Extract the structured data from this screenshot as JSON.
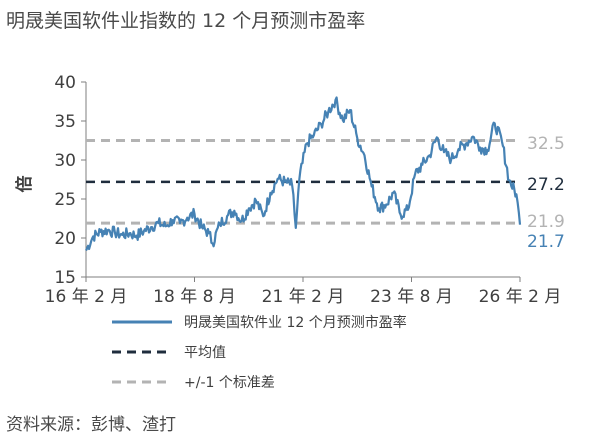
{
  "title": "明晟美国软件业指数的 12 个月预测市盈率",
  "source": "资料来源：彭博、渣打",
  "chart_data": {
    "type": "line",
    "ylabel": "倍",
    "ylim": [
      15,
      40
    ],
    "yticks": [
      15,
      20,
      25,
      30,
      35,
      40
    ],
    "xlim": [
      "2016-02",
      "2026-02"
    ],
    "xticks": [
      {
        "date": "2016-02",
        "label": "16 年 2 月"
      },
      {
        "date": "2018-08",
        "label": "18 年 8 月"
      },
      {
        "date": "2021-02",
        "label": "21 年 2 月"
      },
      {
        "date": "2023-08",
        "label": "23 年 8 月"
      },
      {
        "date": "2026-02",
        "label": "26 年 2 月"
      }
    ],
    "series": [
      {
        "name": "明晟美国软件业 12 个月预测市盈率",
        "color": "#4682b4",
        "points": [
          [
            "2016-02",
            18.4
          ],
          [
            "2016-04",
            20.2
          ],
          [
            "2016-06",
            20.8
          ],
          [
            "2016-08",
            21.0
          ],
          [
            "2016-10",
            20.7
          ],
          [
            "2016-12",
            20.4
          ],
          [
            "2017-02",
            20.6
          ],
          [
            "2017-04",
            20.3
          ],
          [
            "2017-06",
            20.9
          ],
          [
            "2017-08",
            21.4
          ],
          [
            "2017-10",
            21.9
          ],
          [
            "2017-12",
            21.5
          ],
          [
            "2018-02",
            22.3
          ],
          [
            "2018-04",
            21.9
          ],
          [
            "2018-06",
            22.6
          ],
          [
            "2018-08",
            23.1
          ],
          [
            "2018-10",
            21.4
          ],
          [
            "2018-12",
            20.6
          ],
          [
            "2019-01",
            19.3
          ],
          [
            "2019-03",
            21.8
          ],
          [
            "2019-05",
            22.8
          ],
          [
            "2019-07",
            23.5
          ],
          [
            "2019-09",
            22.2
          ],
          [
            "2019-11",
            23.8
          ],
          [
            "2020-01",
            24.8
          ],
          [
            "2020-03",
            22.8
          ],
          [
            "2020-05",
            25.8
          ],
          [
            "2020-07",
            27.6
          ],
          [
            "2020-09",
            27.2
          ],
          [
            "2020-11",
            26.8
          ],
          [
            "2020-12",
            21.3
          ],
          [
            "2021-01",
            27.6
          ],
          [
            "2021-03",
            32.1
          ],
          [
            "2021-05",
            33.2
          ],
          [
            "2021-07",
            34.6
          ],
          [
            "2021-09",
            36.2
          ],
          [
            "2021-11",
            37.7
          ],
          [
            "2022-01",
            35.1
          ],
          [
            "2022-03",
            36.4
          ],
          [
            "2022-05",
            32.8
          ],
          [
            "2022-07",
            30.6
          ],
          [
            "2022-09",
            26.6
          ],
          [
            "2022-11",
            23.8
          ],
          [
            "2023-01",
            24.3
          ],
          [
            "2023-03",
            25.8
          ],
          [
            "2023-05",
            23.0
          ],
          [
            "2023-07",
            23.6
          ],
          [
            "2023-09",
            28.2
          ],
          [
            "2023-11",
            29.4
          ],
          [
            "2024-01",
            30.6
          ],
          [
            "2024-03",
            32.9
          ],
          [
            "2024-05",
            31.0
          ],
          [
            "2024-07",
            30.1
          ],
          [
            "2024-09",
            31.4
          ],
          [
            "2024-11",
            32.1
          ],
          [
            "2025-01",
            33.0
          ],
          [
            "2025-03",
            31.6
          ],
          [
            "2025-05",
            31.3
          ],
          [
            "2025-07",
            34.7
          ],
          [
            "2025-09",
            32.4
          ],
          [
            "2025-11",
            27.4
          ],
          [
            "2026-01",
            25.6
          ],
          [
            "2026-02",
            21.7
          ]
        ]
      },
      {
        "name": "平均值",
        "value": 27.2,
        "color": "#1f2d3d",
        "style": "dashed"
      },
      {
        "name": "+/-1 个标准差",
        "values": [
          32.5,
          21.9
        ],
        "color": "#b3b3b3",
        "style": "dashed"
      }
    ],
    "end_labels": [
      {
        "value": 32.5,
        "text": "32.5",
        "color": "#b3b3b3"
      },
      {
        "value": 27.2,
        "text": "27.2",
        "color": "#1f2d3d"
      },
      {
        "value": 21.9,
        "text": "21.9",
        "color": "#b3b3b3"
      },
      {
        "value": 21.7,
        "text": "21.7",
        "color": "#4682b4"
      }
    ],
    "legend": {
      "placement": "bottom",
      "entries": [
        {
          "label": "明晟美国软件业 12 个月预测市盈率",
          "color": "#4682b4",
          "style": "solid"
        },
        {
          "label": "平均值",
          "color": "#1f2d3d",
          "style": "dashed"
        },
        {
          "label": "+/-1 个标准差",
          "color": "#b3b3b3",
          "style": "dashed"
        }
      ]
    }
  }
}
